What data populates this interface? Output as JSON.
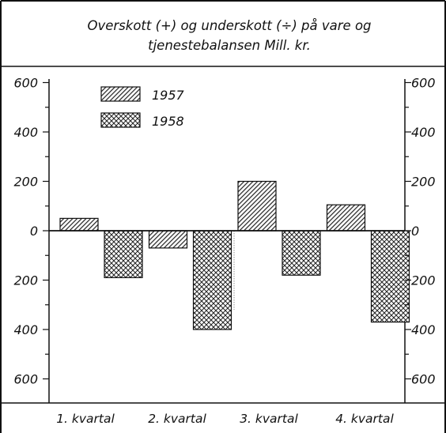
{
  "chart_data": {
    "type": "bar",
    "title_line1": "Overskott (+) og underskott (÷) på vare og",
    "title_line2": "tjenestebalansen   Mill. kr.",
    "categories": [
      "1. kvartal",
      "2. kvartal",
      "3. kvartal",
      "4. kvartal"
    ],
    "series": [
      {
        "name": "1957",
        "values": [
          50,
          -70,
          200,
          105
        ],
        "pattern": "diagonal-hatch"
      },
      {
        "name": "1958",
        "values": [
          -190,
          -400,
          -180,
          -370
        ],
        "pattern": "cross-hatch"
      }
    ],
    "ylim": [
      -600,
      600
    ],
    "left_ticks": [
      "600",
      "400",
      "200",
      "0",
      "200",
      "400",
      "600"
    ],
    "right_ticks": [
      "600",
      "400",
      "200",
      "0",
      "200",
      "400",
      "600"
    ],
    "tick_values": [
      600,
      400,
      200,
      0,
      -200,
      -400,
      -600
    ],
    "minor_tick_step": 100,
    "grid": false,
    "legend_position": "top-left",
    "colors": {
      "ink": "#111111",
      "paper": "#ffffff"
    }
  }
}
